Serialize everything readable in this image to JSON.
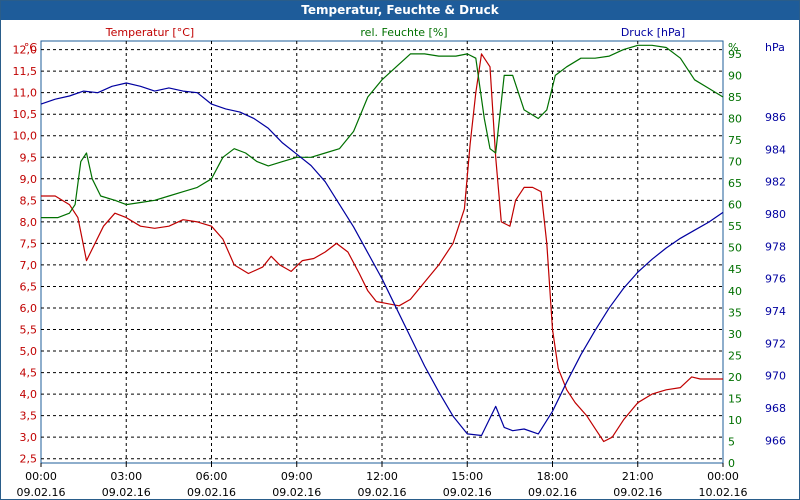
{
  "window": {
    "title": "Temperatur, Feuchte & Druck"
  },
  "chart_data": {
    "type": "line",
    "title": "Temperatur, Feuchte & Druck",
    "colors": {
      "temperature": "#c00000",
      "humidity": "#007000",
      "pressure": "#0000a0",
      "grid": "#000000",
      "frame": "#1e5c9a"
    },
    "x_ticks": [
      {
        "time": "00:00",
        "date": "09.02.16"
      },
      {
        "time": "03:00",
        "date": "09.02.16"
      },
      {
        "time": "06:00",
        "date": "09.02.16"
      },
      {
        "time": "09:00",
        "date": "09.02.16"
      },
      {
        "time": "12:00",
        "date": "09.02.16"
      },
      {
        "time": "15:00",
        "date": "09.02.16"
      },
      {
        "time": "18:00",
        "date": "09.02.16"
      },
      {
        "time": "21:00",
        "date": "09.02.16"
      },
      {
        "time": "00:00",
        "date": "10.02.16"
      }
    ],
    "xlim_hours": [
      0,
      24
    ],
    "axes": {
      "temperature": {
        "label": "Temperatur [°C]",
        "unit": "°C",
        "ylim": [
          2.4,
          12.2
        ],
        "ticks": [
          "2,5",
          "3,0",
          "3,5",
          "4,0",
          "4,5",
          "5,0",
          "5,5",
          "6,0",
          "6,5",
          "7,0",
          "7,5",
          "8,0",
          "8,5",
          "9,0",
          "9,5",
          "10,0",
          "10,5",
          "11,0",
          "11,5",
          "12,0"
        ],
        "tick_values": [
          2.5,
          3.0,
          3.5,
          4.0,
          4.5,
          5.0,
          5.5,
          6.0,
          6.5,
          7.0,
          7.5,
          8.0,
          8.5,
          9.0,
          9.5,
          10.0,
          10.5,
          11.0,
          11.5,
          12.0
        ]
      },
      "humidity": {
        "label": "rel. Feuchte [%]",
        "unit": "%",
        "ylim": [
          0,
          98
        ],
        "ticks": [
          "0",
          "5",
          "10",
          "15",
          "20",
          "25",
          "30",
          "35",
          "40",
          "45",
          "50",
          "55",
          "60",
          "65",
          "70",
          "75",
          "80",
          "85",
          "90",
          "95"
        ],
        "tick_values": [
          0,
          5,
          10,
          15,
          20,
          25,
          30,
          35,
          40,
          45,
          50,
          55,
          60,
          65,
          70,
          75,
          80,
          85,
          90,
          95
        ]
      },
      "pressure": {
        "label": "Druck [hPa]",
        "unit": "hPa",
        "ylim": [
          964.6,
          990.7
        ],
        "ticks": [
          "966",
          "968",
          "970",
          "972",
          "974",
          "976",
          "978",
          "980",
          "982",
          "984",
          "986"
        ],
        "tick_values": [
          966,
          968,
          970,
          972,
          974,
          976,
          978,
          980,
          982,
          984,
          986
        ]
      }
    },
    "series": [
      {
        "name": "Temperatur",
        "axis": "temperature",
        "points": [
          [
            0,
            8.6
          ],
          [
            0.5,
            8.6
          ],
          [
            1,
            8.4
          ],
          [
            1.3,
            8.1
          ],
          [
            1.6,
            7.1
          ],
          [
            1.9,
            7.5
          ],
          [
            2.2,
            7.9
          ],
          [
            2.6,
            8.2
          ],
          [
            3,
            8.1
          ],
          [
            3.5,
            7.9
          ],
          [
            4,
            7.85
          ],
          [
            4.5,
            7.9
          ],
          [
            5,
            8.05
          ],
          [
            5.5,
            8.0
          ],
          [
            6,
            7.9
          ],
          [
            6.4,
            7.6
          ],
          [
            6.8,
            7.0
          ],
          [
            7.3,
            6.8
          ],
          [
            7.8,
            6.95
          ],
          [
            8.1,
            7.2
          ],
          [
            8.4,
            7.0
          ],
          [
            8.8,
            6.85
          ],
          [
            9.2,
            7.1
          ],
          [
            9.6,
            7.15
          ],
          [
            10,
            7.3
          ],
          [
            10.4,
            7.5
          ],
          [
            10.8,
            7.3
          ],
          [
            11.2,
            6.8
          ],
          [
            11.5,
            6.4
          ],
          [
            11.8,
            6.15
          ],
          [
            12.2,
            6.1
          ],
          [
            12.6,
            6.05
          ],
          [
            13,
            6.2
          ],
          [
            13.5,
            6.6
          ],
          [
            14,
            7.0
          ],
          [
            14.5,
            7.5
          ],
          [
            14.9,
            8.3
          ],
          [
            15.1,
            9.8
          ],
          [
            15.3,
            11.0
          ],
          [
            15.5,
            11.9
          ],
          [
            15.8,
            11.6
          ],
          [
            16,
            9.5
          ],
          [
            16.2,
            8.0
          ],
          [
            16.5,
            7.9
          ],
          [
            16.7,
            8.5
          ],
          [
            17,
            8.8
          ],
          [
            17.3,
            8.8
          ],
          [
            17.6,
            8.7
          ],
          [
            17.8,
            7.5
          ],
          [
            18,
            5.5
          ],
          [
            18.2,
            4.6
          ],
          [
            18.5,
            4.1
          ],
          [
            18.8,
            3.8
          ],
          [
            19.2,
            3.5
          ],
          [
            19.5,
            3.2
          ],
          [
            19.8,
            2.9
          ],
          [
            20.1,
            3.0
          ],
          [
            20.5,
            3.4
          ],
          [
            21,
            3.8
          ],
          [
            21.5,
            4.0
          ],
          [
            22,
            4.1
          ],
          [
            22.5,
            4.15
          ],
          [
            22.9,
            4.4
          ],
          [
            23.2,
            4.35
          ],
          [
            24,
            4.35
          ]
        ]
      },
      {
        "name": "rel. Feuchte",
        "axis": "humidity",
        "points": [
          [
            0,
            57
          ],
          [
            0.6,
            57
          ],
          [
            1,
            58
          ],
          [
            1.2,
            60
          ],
          [
            1.4,
            70
          ],
          [
            1.6,
            72
          ],
          [
            1.8,
            66
          ],
          [
            2.1,
            62
          ],
          [
            2.6,
            61
          ],
          [
            3,
            60
          ],
          [
            3.5,
            60.5
          ],
          [
            4,
            61
          ],
          [
            4.5,
            62
          ],
          [
            5,
            63
          ],
          [
            5.5,
            64
          ],
          [
            6,
            66
          ],
          [
            6.4,
            71
          ],
          [
            6.8,
            73
          ],
          [
            7.2,
            72
          ],
          [
            7.6,
            70
          ],
          [
            8,
            69
          ],
          [
            8.5,
            70
          ],
          [
            9,
            71
          ],
          [
            9.5,
            71
          ],
          [
            10,
            72
          ],
          [
            10.5,
            73
          ],
          [
            11,
            77
          ],
          [
            11.5,
            85
          ],
          [
            12,
            89
          ],
          [
            12.5,
            92
          ],
          [
            13,
            95
          ],
          [
            13.5,
            95
          ],
          [
            14,
            94.5
          ],
          [
            14.6,
            94.5
          ],
          [
            15,
            95
          ],
          [
            15.3,
            94
          ],
          [
            15.6,
            80
          ],
          [
            15.8,
            73
          ],
          [
            16,
            72
          ],
          [
            16.3,
            90
          ],
          [
            16.6,
            90
          ],
          [
            17,
            82
          ],
          [
            17.5,
            80
          ],
          [
            17.8,
            82
          ],
          [
            18.1,
            90
          ],
          [
            18.5,
            92
          ],
          [
            19,
            94
          ],
          [
            19.5,
            94
          ],
          [
            20,
            94.5
          ],
          [
            20.5,
            96
          ],
          [
            21,
            97
          ],
          [
            21.5,
            97
          ],
          [
            22,
            96.5
          ],
          [
            22.5,
            94
          ],
          [
            23,
            89
          ],
          [
            23.5,
            87
          ],
          [
            24,
            85
          ]
        ]
      },
      {
        "name": "Druck",
        "axis": "pressure",
        "points": [
          [
            0,
            986.8
          ],
          [
            0.5,
            987.1
          ],
          [
            1,
            987.3
          ],
          [
            1.5,
            987.6
          ],
          [
            2,
            987.5
          ],
          [
            2.5,
            987.9
          ],
          [
            3,
            988.1
          ],
          [
            3.5,
            987.9
          ],
          [
            4,
            987.6
          ],
          [
            4.5,
            987.8
          ],
          [
            5,
            987.6
          ],
          [
            5.5,
            987.5
          ],
          [
            6,
            986.8
          ],
          [
            6.5,
            986.5
          ],
          [
            7,
            986.3
          ],
          [
            7.5,
            985.9
          ],
          [
            8,
            985.3
          ],
          [
            8.5,
            984.4
          ],
          [
            9,
            983.7
          ],
          [
            9.5,
            983.0
          ],
          [
            10,
            982.0
          ],
          [
            10.5,
            980.6
          ],
          [
            11,
            979.2
          ],
          [
            11.5,
            977.6
          ],
          [
            12,
            976.0
          ],
          [
            12.5,
            974.2
          ],
          [
            13,
            972.4
          ],
          [
            13.5,
            970.6
          ],
          [
            14,
            969.0
          ],
          [
            14.5,
            967.5
          ],
          [
            15,
            966.4
          ],
          [
            15.5,
            966.3
          ],
          [
            16,
            968.1
          ],
          [
            16.3,
            966.8
          ],
          [
            16.6,
            966.6
          ],
          [
            17,
            966.7
          ],
          [
            17.5,
            966.4
          ],
          [
            18,
            967.8
          ],
          [
            18.5,
            969.6
          ],
          [
            19,
            971.3
          ],
          [
            19.5,
            972.8
          ],
          [
            20,
            974.2
          ],
          [
            20.5,
            975.4
          ],
          [
            21,
            976.4
          ],
          [
            21.5,
            977.2
          ],
          [
            22,
            977.9
          ],
          [
            22.5,
            978.5
          ],
          [
            23,
            979.0
          ],
          [
            23.5,
            979.5
          ],
          [
            24,
            980.1
          ]
        ]
      }
    ]
  }
}
